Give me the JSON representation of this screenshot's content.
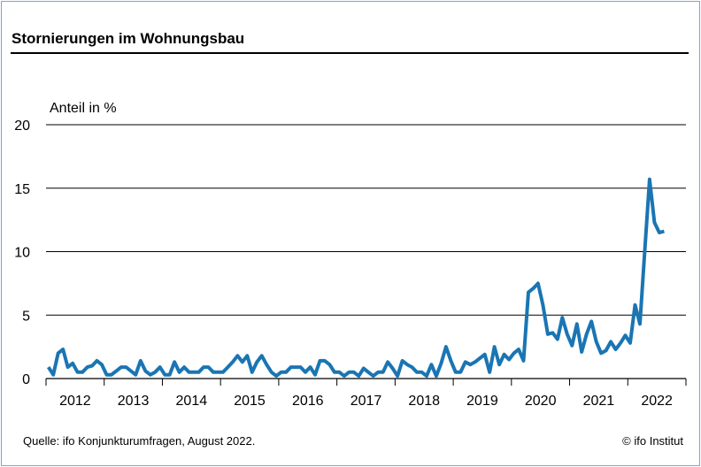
{
  "chart_data": {
    "type": "line",
    "title": "Stornierungen im Wohnungsbau",
    "ylabel": "Anteil in %",
    "xlabel": "",
    "ylim": [
      0,
      20
    ],
    "yticks": [
      0,
      5,
      10,
      15,
      20
    ],
    "ytick_labels": [
      "0",
      "5",
      "10",
      "15",
      "20"
    ],
    "xtick_labels": [
      "2012",
      "2013",
      "2014",
      "2015",
      "2016",
      "2017",
      "2018",
      "2019",
      "2020",
      "2021",
      "2022"
    ],
    "x_start": "2012-01",
    "x_frequency": "monthly",
    "grid": "horizontal",
    "line_color": "#1a75b3",
    "series": [
      {
        "name": "Stornierungen im Wohnungsbau",
        "values": [
          0.9,
          0.3,
          2.0,
          2.3,
          0.9,
          1.2,
          0.5,
          0.5,
          0.9,
          1.0,
          1.4,
          1.1,
          0.3,
          0.3,
          0.6,
          0.9,
          0.9,
          0.6,
          0.3,
          1.4,
          0.6,
          0.3,
          0.5,
          0.9,
          0.3,
          0.3,
          1.3,
          0.5,
          0.9,
          0.5,
          0.5,
          0.5,
          0.9,
          0.9,
          0.5,
          0.5,
          0.5,
          0.9,
          1.3,
          1.8,
          1.3,
          1.8,
          0.5,
          1.3,
          1.8,
          1.1,
          0.5,
          0.2,
          0.5,
          0.5,
          0.9,
          0.9,
          0.9,
          0.5,
          0.9,
          0.3,
          1.4,
          1.4,
          1.1,
          0.5,
          0.5,
          0.2,
          0.5,
          0.5,
          0.2,
          0.8,
          0.5,
          0.2,
          0.5,
          0.5,
          1.3,
          0.8,
          0.2,
          1.4,
          1.1,
          0.9,
          0.5,
          0.5,
          0.2,
          1.1,
          0.2,
          1.2,
          2.5,
          1.4,
          0.5,
          0.5,
          1.3,
          1.1,
          1.3,
          1.6,
          1.9,
          0.5,
          2.5,
          1.1,
          1.9,
          1.5,
          2.0,
          2.3,
          1.4,
          6.8,
          7.1,
          7.5,
          5.8,
          3.5,
          3.6,
          3.1,
          4.8,
          3.5,
          2.6,
          4.3,
          2.1,
          3.5,
          4.5,
          2.9,
          2.0,
          2.2,
          2.9,
          2.3,
          2.8,
          3.4,
          2.8,
          5.8,
          4.3,
          10.0,
          15.7,
          12.3,
          11.5,
          11.6
        ]
      }
    ]
  },
  "footer": {
    "source": "Quelle: ifo Konjunkturumfragen, August 2022.",
    "copyright": "© ifo Institut"
  }
}
